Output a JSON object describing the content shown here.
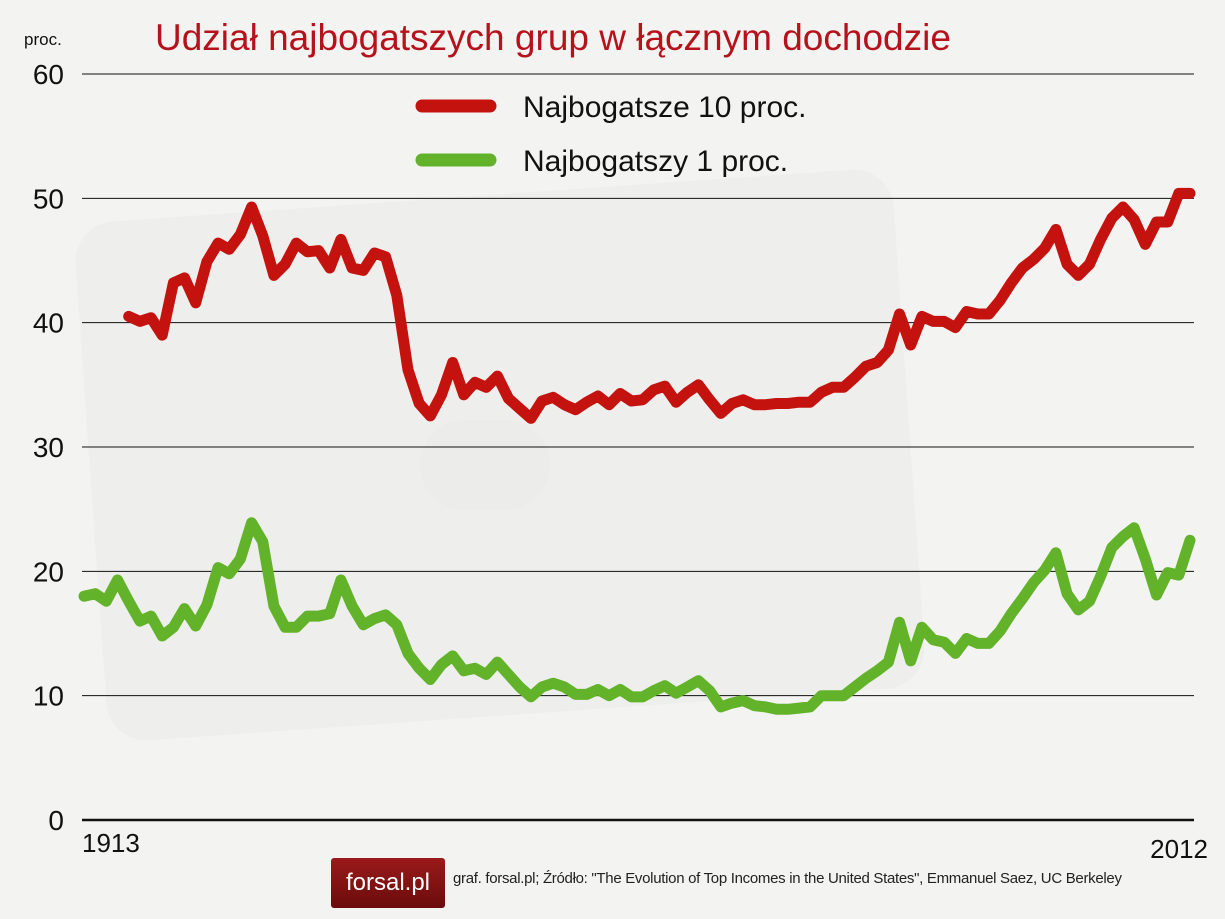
{
  "title": "Udział najbogatszych grup w łącznym dochodzie",
  "unit_label": "proc.",
  "footer": {
    "logo": "forsal.pl",
    "source": "graf. forsal.pl; Źródło: \"The Evolution of Top Incomes in the United States\", Emmanuel Saez, UC Berkeley"
  },
  "colors": {
    "top10": "#c4120f",
    "top1": "#62b32a",
    "title": "#b5121b"
  },
  "chart_data": {
    "type": "line",
    "title": "Udział najbogatszych grup w łącznym dochodzie",
    "xlabel": "",
    "ylabel": "proc.",
    "ylim": [
      0,
      60
    ],
    "yticks": [
      0,
      10,
      20,
      30,
      40,
      50,
      60
    ],
    "xtick_labels": [
      "1913",
      "2012"
    ],
    "xlim": [
      1913,
      2012
    ],
    "grid": true,
    "legend_position": "top-center",
    "series": [
      {
        "name": "Najbogatsze 10 proc.",
        "color": "#c4120f",
        "x": [
          1917,
          1918,
          1919,
          1920,
          1921,
          1922,
          1923,
          1924,
          1925,
          1926,
          1927,
          1928,
          1929,
          1930,
          1931,
          1932,
          1933,
          1934,
          1935,
          1936,
          1937,
          1938,
          1939,
          1940,
          1941,
          1942,
          1943,
          1944,
          1945,
          1946,
          1947,
          1948,
          1949,
          1950,
          1951,
          1952,
          1953,
          1954,
          1955,
          1956,
          1957,
          1958,
          1959,
          1960,
          1961,
          1962,
          1963,
          1964,
          1965,
          1966,
          1967,
          1968,
          1969,
          1970,
          1971,
          1972,
          1973,
          1974,
          1975,
          1976,
          1977,
          1978,
          1979,
          1980,
          1981,
          1982,
          1983,
          1984,
          1985,
          1986,
          1987,
          1988,
          1989,
          1990,
          1991,
          1992,
          1993,
          1994,
          1995,
          1996,
          1997,
          1998,
          1999,
          2000,
          2001,
          2002,
          2003,
          2004,
          2005,
          2006,
          2007,
          2008,
          2009,
          2010,
          2011,
          2012
        ],
        "values": [
          40.5,
          40.1,
          40.4,
          39.0,
          43.2,
          43.6,
          41.6,
          44.9,
          46.4,
          45.9,
          47.1,
          49.3,
          47.0,
          43.8,
          44.7,
          46.4,
          45.7,
          45.8,
          44.4,
          46.7,
          44.4,
          44.2,
          45.6,
          45.3,
          42.2,
          36.2,
          33.5,
          32.5,
          34.2,
          36.8,
          34.2,
          35.2,
          34.8,
          35.7,
          33.9,
          33.1,
          32.3,
          33.7,
          34.0,
          33.4,
          33.0,
          33.6,
          34.1,
          33.4,
          34.3,
          33.7,
          33.8,
          34.6,
          34.9,
          33.6,
          34.4,
          35.0,
          33.8,
          32.7,
          33.5,
          33.8,
          33.4,
          33.4,
          33.5,
          33.5,
          33.6,
          33.6,
          34.4,
          34.8,
          34.8,
          35.6,
          36.5,
          36.8,
          37.8,
          40.7,
          38.2,
          40.5,
          40.1,
          40.1,
          39.6,
          40.9,
          40.7,
          40.7,
          41.8,
          43.2,
          44.4,
          45.1,
          46.0,
          47.5,
          44.7,
          43.8,
          44.7,
          46.7,
          48.4,
          49.3,
          48.3,
          46.3,
          48.1,
          48.1,
          50.4,
          50.4
        ]
      },
      {
        "name": "Najbogatszy 1 proc.",
        "color": "#62b32a",
        "x": [
          1913,
          1914,
          1915,
          1916,
          1917,
          1918,
          1919,
          1920,
          1921,
          1922,
          1923,
          1924,
          1925,
          1926,
          1927,
          1928,
          1929,
          1930,
          1931,
          1932,
          1933,
          1934,
          1935,
          1936,
          1937,
          1938,
          1939,
          1940,
          1941,
          1942,
          1943,
          1944,
          1945,
          1946,
          1947,
          1948,
          1949,
          1950,
          1951,
          1952,
          1953,
          1954,
          1955,
          1956,
          1957,
          1958,
          1959,
          1960,
          1961,
          1962,
          1963,
          1964,
          1965,
          1966,
          1967,
          1968,
          1969,
          1970,
          1971,
          1972,
          1973,
          1974,
          1975,
          1976,
          1977,
          1978,
          1979,
          1980,
          1981,
          1982,
          1983,
          1984,
          1985,
          1986,
          1987,
          1988,
          1989,
          1990,
          1991,
          1992,
          1993,
          1994,
          1995,
          1996,
          1997,
          1998,
          1999,
          2000,
          2001,
          2002,
          2003,
          2004,
          2005,
          2006,
          2007,
          2008,
          2009,
          2010,
          2011,
          2012
        ],
        "values": [
          18.0,
          18.2,
          17.6,
          19.3,
          17.6,
          16.0,
          16.4,
          14.8,
          15.5,
          17.0,
          15.6,
          17.3,
          20.3,
          19.8,
          21.0,
          23.9,
          22.4,
          17.2,
          15.5,
          15.5,
          16.4,
          16.4,
          16.6,
          19.3,
          17.2,
          15.7,
          16.2,
          16.5,
          15.7,
          13.4,
          12.2,
          11.3,
          12.5,
          13.2,
          12.0,
          12.2,
          11.7,
          12.7,
          11.7,
          10.7,
          9.9,
          10.7,
          11.0,
          10.7,
          10.1,
          10.1,
          10.5,
          10.0,
          10.5,
          9.9,
          9.9,
          10.4,
          10.8,
          10.2,
          10.7,
          11.2,
          10.4,
          9.1,
          9.4,
          9.6,
          9.2,
          9.1,
          8.9,
          8.9,
          9.0,
          9.1,
          10.0,
          10.0,
          10.0,
          10.7,
          11.4,
          12.0,
          12.7,
          15.9,
          12.8,
          15.5,
          14.5,
          14.3,
          13.4,
          14.6,
          14.2,
          14.2,
          15.2,
          16.6,
          17.8,
          19.1,
          20.1,
          21.5,
          18.2,
          16.9,
          17.6,
          19.6,
          21.9,
          22.8,
          23.5,
          21.0,
          18.1,
          19.9,
          19.7,
          22.5
        ]
      }
    ]
  }
}
